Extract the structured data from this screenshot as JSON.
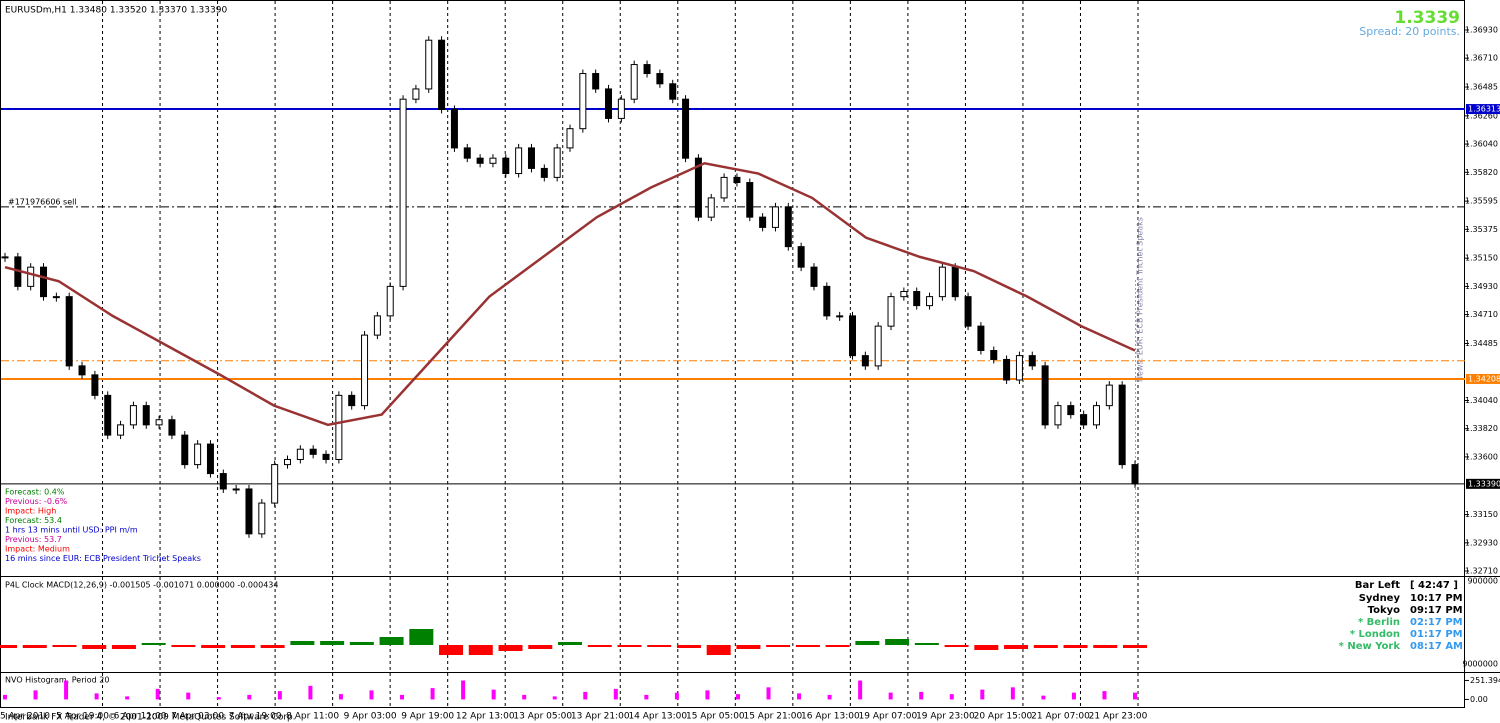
{
  "header": {
    "symbol_line": "EURUSDm,H1  1.33480 1.33520 1.33370 1.33390",
    "bid": "1.3339",
    "spread": "Spread: 20 points."
  },
  "news": {
    "lines": [
      {
        "text": "Forecast: 0.4%",
        "color": "#008000"
      },
      {
        "text": "Previous: -0.6%",
        "color": "#cc0099"
      },
      {
        "text": "Impact: High",
        "color": "#ff0000"
      },
      {
        "text": "Forecast: 53.4",
        "color": "#008000"
      },
      {
        "text": "1 hrs 13 mins until USD: PPI m/m",
        "color": "#0000cc"
      },
      {
        "text": "Previous: 53.7",
        "color": "#cc0099"
      },
      {
        "text": "Impact: Medium",
        "color": "#ff0000"
      },
      {
        "text": "16 mins since EUR: ECB President Trichet Speaks",
        "color": "#0000cc"
      }
    ],
    "vertical_label": "News: EUR: ECB President Trichet Speaks"
  },
  "clock": {
    "bar_left_label": "Bar Left",
    "bar_left_value": "[ 42:47 ]",
    "rows": [
      {
        "city": "Sydney",
        "time": "10:17 PM"
      },
      {
        "city": "Tokyo",
        "time": "09:17 PM"
      },
      {
        "city": "* Berlin",
        "time": "02:17 PM"
      },
      {
        "city": "* London",
        "time": "01:17 PM"
      },
      {
        "city": "* New York",
        "time": "08:17 AM"
      }
    ]
  },
  "footer": {
    "copyright": "Interbank FX Trader 4, © 2001-2009 MetaQuotes Software Corp."
  },
  "time_axis": {
    "labels": [
      "5 Apr 2010",
      "5 Apr 19:00",
      "6 Apr 11:00",
      "7 Apr 03:00",
      "7 Apr 19:00",
      "8 Apr 11:00",
      "9 Apr 03:00",
      "9 Apr 19:00",
      "12 Apr 13:00",
      "13 Apr 05:00",
      "13 Apr 21:00",
      "14 Apr 13:00",
      "15 Apr 05:00",
      "15 Apr 21:00",
      "16 Apr 13:00",
      "19 Apr 07:00",
      "19 Apr 23:00",
      "20 Apr 15:00",
      "21 Apr 07:00",
      "21 Apr 23:00"
    ]
  },
  "chart_data": [
    {
      "type": "candlestick",
      "ylim": [
        1.32679,
        1.37148
      ],
      "yticks": [
        {
          "value": 1.3693,
          "label": "1.36930"
        },
        {
          "value": 1.3671,
          "label": "1.36710"
        },
        1.36485,
        {
          "value": 1.3626,
          "label": "1.36260"
        },
        {
          "value": 1.3604,
          "label": "1.36040"
        },
        {
          "value": 1.3582,
          "label": "1.35820"
        },
        1.35595,
        1.35375,
        {
          "value": 1.3515,
          "label": "1.35150"
        },
        {
          "value": 1.3493,
          "label": "1.34930"
        },
        {
          "value": 1.3471,
          "label": "1.34710"
        },
        1.34485,
        {
          "value": 1.3404,
          "label": "1.34040"
        },
        {
          "value": 1.3382,
          "label": "1.33820"
        },
        {
          "value": 1.336,
          "label": "1.33600"
        },
        {
          "value": 1.3315,
          "label": "1.33150"
        },
        {
          "value": 1.3293,
          "label": "1.32930"
        },
        {
          "value": 1.3271,
          "label": "1.32710"
        }
      ],
      "series": [
        {
          "color": "#000000",
          "values": [
            1.3516,
            1.3493,
            1.3508,
            1.3485,
            1.3485,
            1.3431,
            1.3424,
            1.3408,
            1.3377,
            1.3385,
            1.34,
            1.3385,
            1.3389,
            1.3377,
            1.3354,
            1.337,
            1.3347,
            1.3335,
            1.3335,
            1.33,
            1.3324,
            1.3354,
            1.3358,
            1.3366,
            1.3362,
            1.3358,
            1.3408,
            1.34,
            1.3455,
            1.347,
            1.3493,
            1.3639,
            1.3647,
            1.3685,
            1.3631,
            1.3601,
            1.3593,
            1.3589,
            1.3593,
            1.3581,
            1.3601,
            1.3585,
            1.3578,
            1.3601,
            1.3616,
            1.3659,
            1.3647,
            1.3624,
            1.3639,
            1.3666,
            1.3659,
            1.3651,
            1.3639,
            1.3593,
            1.3547,
            1.3562,
            1.3578,
            1.3574,
            1.3547,
            1.3539,
            1.3555,
            1.3524,
            1.3508,
            1.3493,
            1.347,
            1.347,
            1.3439,
            1.3431,
            1.3462,
            1.3485,
            1.3489,
            1.3478,
            1.3485,
            1.3508,
            1.3485,
            1.3462,
            1.3443,
            1.3436,
            1.342,
            1.3439,
            1.3431,
            1.3385,
            1.34,
            1.3393,
            1.3385,
            1.34,
            1.3416,
            1.3354,
            1.3339
          ]
        },
        {
          "color": "#993333",
          "values": [
            1.3508,
            1.3497,
            1.347,
            1.3447,
            1.3424,
            1.34,
            1.3385,
            1.3393,
            1.3439,
            1.3485,
            1.3516,
            1.3547,
            1.357,
            1.3589,
            1.3581,
            1.3562,
            1.3531,
            1.3516,
            1.3505,
            1.3485,
            1.3462,
            1.3443
          ]
        }
      ],
      "levels": [
        {
          "value": 1.36313,
          "color": "#0000cc",
          "style": "solid"
        },
        {
          "value": 1.34208,
          "color": "#ff8000",
          "style": "solid"
        },
        {
          "value": 1.3435,
          "color": "#ff8000",
          "style": "dashdot"
        },
        {
          "value": 1.3555,
          "color": "#000000",
          "style": "dashdot",
          "text": "#171976606 sell"
        },
        {
          "value": 1.3339,
          "label": "1.33390",
          "color": "#000000",
          "style": "solid"
        }
      ]
    },
    {
      "type": "bar",
      "title": "P4L Clock    MACD(12,26,9) -0.001505 -0.001071 0.000000 -0.000434",
      "ylim": [
        -0.000625,
        0.001675
      ],
      "scale_labels": [
        "900000",
        "9000000"
      ],
      "pos_color": "#008000",
      "neg_color": "#ff0000",
      "values": [
        -7.5e-05,
        -7.5e-05,
        -5e-05,
        -0.0001,
        -0.0001,
        5e-05,
        -5e-05,
        -7.5e-05,
        -7.5e-05,
        -7.5e-05,
        0.0001,
        0.0001,
        7.5e-05,
        0.0002,
        0.0004,
        -0.00025,
        -0.00025,
        -0.00015,
        -0.0001,
        7.5e-05,
        -5e-05,
        -5e-05,
        -5e-05,
        -7.5e-05,
        -0.00025,
        -0.0001,
        -5e-05,
        -5e-05,
        -5e-05,
        0.0001,
        0.00015,
        5e-05,
        -5e-05,
        -0.000125,
        -0.0001,
        -7.5e-05,
        -7.5e-05,
        -7.5e-05,
        -7.5e-05
      ]
    },
    {
      "type": "bar",
      "title": "NVO Histogram, Period 20",
      "color": "#ff00ff",
      "ylim": [
        -140,
        350
      ],
      "yticks": [
        251.394,
        {
          "value": 0,
          "label": "0.00"
        }
      ],
      "values": [
        60,
        120,
        250,
        80,
        40,
        140,
        90,
        30,
        60,
        110,
        180,
        70,
        120,
        60,
        150,
        250,
        130,
        60,
        40,
        100,
        140,
        60,
        90,
        120,
        70,
        160,
        80,
        60,
        250,
        90,
        100,
        70,
        130,
        160,
        50,
        90,
        110,
        90
      ]
    }
  ]
}
